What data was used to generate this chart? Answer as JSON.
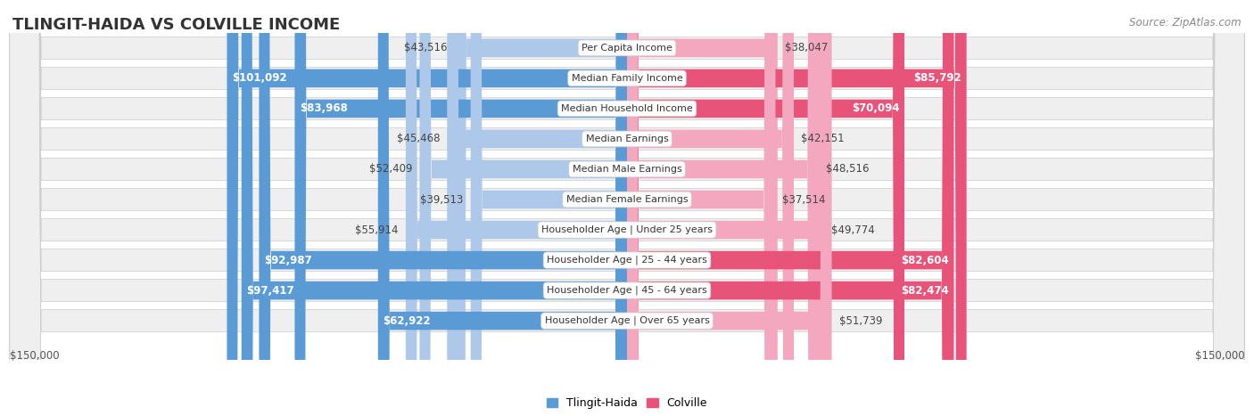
{
  "title": "TLINGIT-HAIDA VS COLVILLE INCOME",
  "source": "Source: ZipAtlas.com",
  "categories": [
    "Per Capita Income",
    "Median Family Income",
    "Median Household Income",
    "Median Earnings",
    "Median Male Earnings",
    "Median Female Earnings",
    "Householder Age | Under 25 years",
    "Householder Age | 25 - 44 years",
    "Householder Age | 45 - 64 years",
    "Householder Age | Over 65 years"
  ],
  "tlingit_values": [
    43516,
    101092,
    83968,
    45468,
    52409,
    39513,
    55914,
    92987,
    97417,
    62922
  ],
  "colville_values": [
    38047,
    85792,
    70094,
    42151,
    48516,
    37514,
    49774,
    82604,
    82474,
    51739
  ],
  "tlingit_labels": [
    "$43,516",
    "$101,092",
    "$83,968",
    "$45,468",
    "$52,409",
    "$39,513",
    "$55,914",
    "$92,987",
    "$97,417",
    "$62,922"
  ],
  "colville_labels": [
    "$38,047",
    "$85,792",
    "$70,094",
    "$42,151",
    "$48,516",
    "$37,514",
    "$49,774",
    "$82,604",
    "$82,474",
    "$51,739"
  ],
  "max_value": 150000,
  "tlingit_color_dark": "#5b9bd5",
  "tlingit_color_light": "#adc8e8",
  "colville_color_dark": "#e8537a",
  "colville_color_light": "#f4a8c0",
  "bg_row_color": "#efefef",
  "bg_alt_color": "#e8e8e8",
  "bg_outer_color": "#ffffff",
  "title_fontsize": 13,
  "label_fontsize": 8.5,
  "cat_fontsize": 8,
  "axis_label": "$150,000",
  "legend_tlingit": "Tlingit-Haida",
  "legend_colville": "Colville",
  "dark_threshold": 60000
}
